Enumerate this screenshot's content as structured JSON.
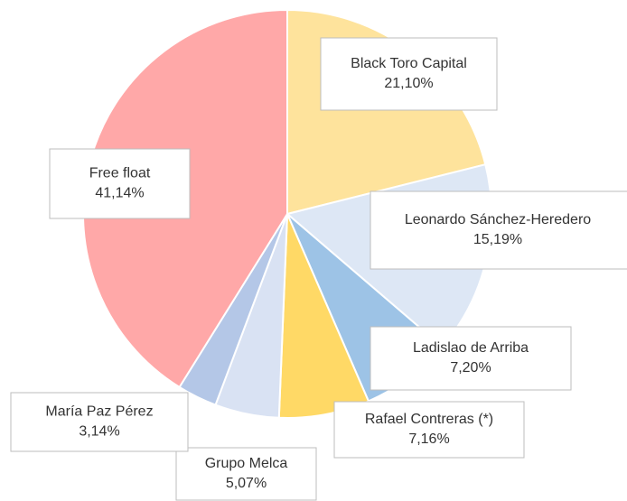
{
  "chart_data": {
    "type": "pie",
    "categories": [
      "Black Toro Capital",
      "Leonardo Sánchez-Heredero",
      "Ladislao de Arriba",
      "Rafael Contreras (*)",
      "Grupo Melca",
      "María Paz Pérez",
      "Free float"
    ],
    "values": [
      21.1,
      15.19,
      7.2,
      7.16,
      5.07,
      3.14,
      41.14
    ],
    "value_labels": [
      "21,10%",
      "15,19%",
      "7,20%",
      "7,16%",
      "5,07%",
      "3,14%",
      "41,14%"
    ],
    "colors": [
      "#fee39c",
      "#dde7f5",
      "#9dc3e6",
      "#ffd966",
      "#d9e2f3",
      "#b4c7e7",
      "#ffa8a8"
    ]
  }
}
